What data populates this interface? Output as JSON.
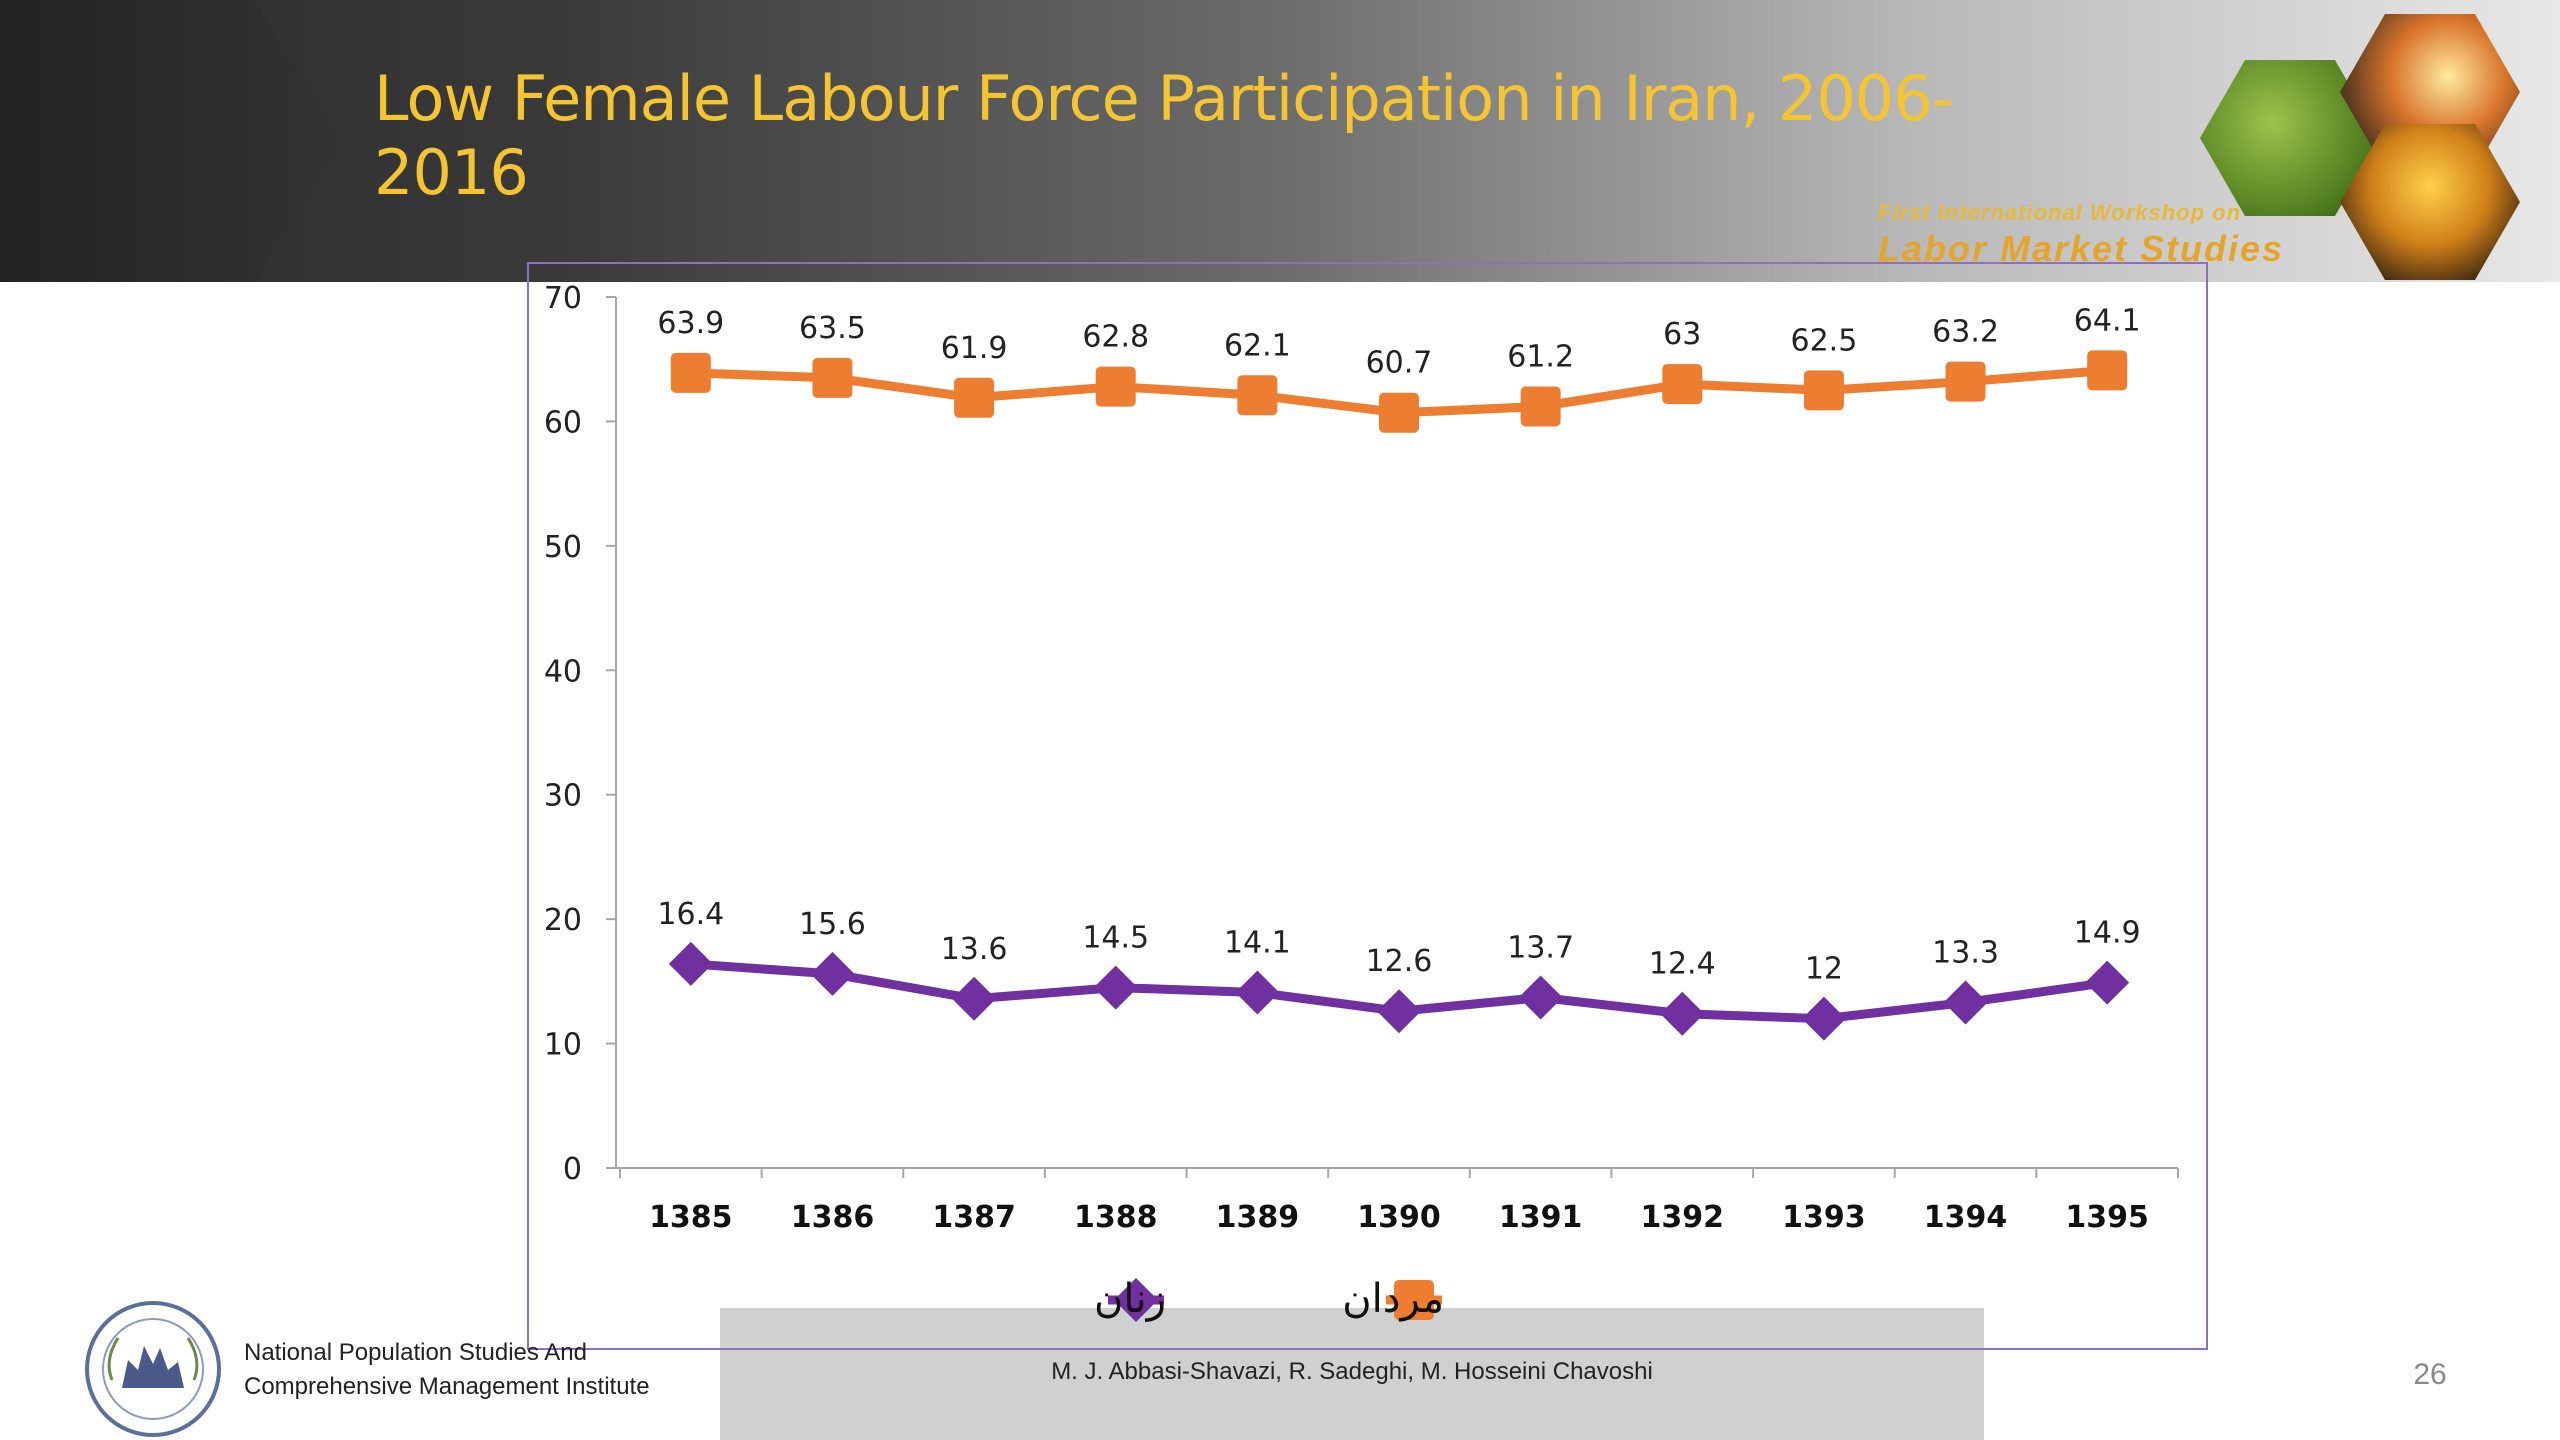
{
  "slide": {
    "title": "Low Female Labour Force Participation in Iran, 2006-2016",
    "title_line1": "Low Female Labour Force Participation in Iran, 2006-",
    "title_line2": "2016",
    "workshop_line1": "First International Workshop on",
    "workshop_line2": "Labor Market Studies",
    "slide_number": "26"
  },
  "footer": {
    "institute_line1": "National Population Studies And",
    "institute_line2": "Comprehensive Management Institute",
    "authors": "M. J. Abbasi-Shavazi, R. Sadeghi, M. Hosseini Chavoshi"
  },
  "colors": {
    "title": "#f4c433",
    "female": "#7030a0",
    "male": "#ed7d31",
    "frame": "#8e6fc0"
  },
  "chart_data": {
    "type": "line",
    "title": "",
    "xlabel": "",
    "ylabel": "",
    "categories": [
      "1385",
      "1386",
      "1387",
      "1388",
      "1389",
      "1390",
      "1391",
      "1392",
      "1393",
      "1394",
      "1395"
    ],
    "series": [
      {
        "name": "مردان",
        "marker": "square",
        "color": "#ed7d31",
        "values": [
          63.9,
          63.5,
          61.9,
          62.8,
          62.1,
          60.7,
          61.2,
          63,
          62.5,
          63.2,
          64.1
        ],
        "labels": [
          "63.9",
          "63.5",
          "61.9",
          "62.8",
          "62.1",
          "60.7",
          "61.2",
          "63",
          "62.5",
          "63.2",
          "64.1"
        ]
      },
      {
        "name": "زنان",
        "marker": "diamond",
        "color": "#7030a0",
        "values": [
          16.4,
          15.6,
          13.6,
          14.5,
          14.1,
          12.6,
          13.7,
          12.4,
          12,
          13.3,
          14.9
        ],
        "labels": [
          "16.4",
          "15.6",
          "13.6",
          "14.5",
          "14.1",
          "12.6",
          "13.7",
          "12.4",
          "12",
          "13.3",
          "14.9"
        ]
      }
    ],
    "ylim": [
      0,
      70
    ],
    "yticks": [
      "0",
      "10",
      "20",
      "30",
      "40",
      "50",
      "60",
      "70"
    ],
    "grid": false,
    "legend_position": "bottom",
    "legend_order": [
      "زنان",
      "مردان"
    ]
  }
}
